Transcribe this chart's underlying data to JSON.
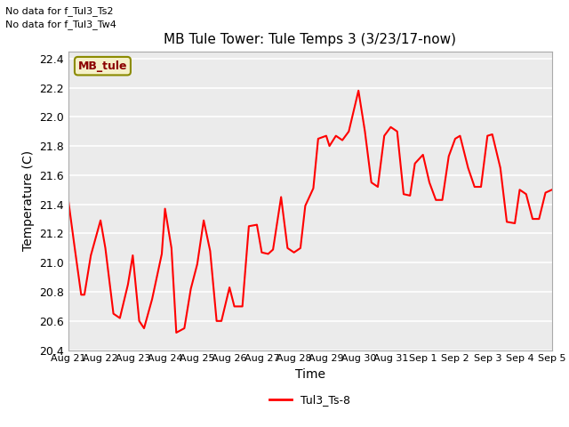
{
  "title": "MB Tule Tower: Tule Temps 3 (3/23/17-now)",
  "xlabel": "Time",
  "ylabel": "Temperature (C)",
  "ylim": [
    20.4,
    22.45
  ],
  "plot_bg_color": "#ebebeb",
  "line_color": "red",
  "line_label": "Tul3_Ts-8",
  "no_data_text": [
    "No data for f_Tul3_Ts2",
    "No data for f_Tul3_Tw4"
  ],
  "mb_tule_box_text": "MB_tule",
  "xtick_labels": [
    "Aug 21",
    "Aug 22",
    "Aug 23",
    "Aug 24",
    "Aug 25",
    "Aug 26",
    "Aug 27",
    "Aug 28",
    "Aug 29",
    "Aug 30",
    "Aug 31",
    "Sep 1",
    "Sep 2",
    "Sep 3",
    "Sep 4",
    "Sep 5"
  ],
  "ytick_labels": [
    "20.4",
    "20.6",
    "20.8",
    "21.0",
    "21.2",
    "21.4",
    "21.6",
    "21.8",
    "22.0",
    "22.2",
    "22.4"
  ],
  "ytick_values": [
    20.4,
    20.6,
    20.8,
    21.0,
    21.2,
    21.4,
    21.6,
    21.8,
    22.0,
    22.2,
    22.4
  ],
  "x_data": [
    0,
    0.2,
    0.4,
    0.5,
    0.7,
    1.0,
    1.15,
    1.4,
    1.6,
    1.85,
    2.0,
    2.2,
    2.35,
    2.6,
    2.9,
    3.0,
    3.2,
    3.35,
    3.6,
    3.8,
    4.0,
    4.2,
    4.4,
    4.6,
    4.75,
    5.0,
    5.15,
    5.4,
    5.6,
    5.85,
    6.0,
    6.2,
    6.35,
    6.6,
    6.8,
    7.0,
    7.2,
    7.35,
    7.6,
    7.75,
    8.0,
    8.1,
    8.3,
    8.5,
    8.7,
    9.0,
    9.2,
    9.4,
    9.6,
    9.8,
    10.0,
    10.2,
    10.4,
    10.6,
    10.75,
    11.0,
    11.2,
    11.4,
    11.6,
    11.8,
    12.0,
    12.15,
    12.4,
    12.6,
    12.8,
    13.0,
    13.15,
    13.4,
    13.6,
    13.85,
    14.0,
    14.2,
    14.4,
    14.6,
    14.8,
    15.0
  ],
  "y_data": [
    21.43,
    21.1,
    20.78,
    20.78,
    21.05,
    21.29,
    21.1,
    20.65,
    20.62,
    20.85,
    21.05,
    20.6,
    20.55,
    20.75,
    21.06,
    21.37,
    21.1,
    20.52,
    20.55,
    20.82,
    20.99,
    21.29,
    21.08,
    20.6,
    20.6,
    20.83,
    20.7,
    20.7,
    21.25,
    21.26,
    21.07,
    21.06,
    21.09,
    21.45,
    21.1,
    21.07,
    21.1,
    21.39,
    21.51,
    21.85,
    21.87,
    21.8,
    21.87,
    21.84,
    21.9,
    22.18,
    21.9,
    21.55,
    21.52,
    21.87,
    21.93,
    21.9,
    21.47,
    21.46,
    21.68,
    21.74,
    21.55,
    21.43,
    21.43,
    21.73,
    21.85,
    21.87,
    21.65,
    21.52,
    21.52,
    21.87,
    21.88,
    21.65,
    21.28,
    21.27,
    21.5,
    21.47,
    21.3,
    21.3,
    21.48,
    21.5
  ]
}
